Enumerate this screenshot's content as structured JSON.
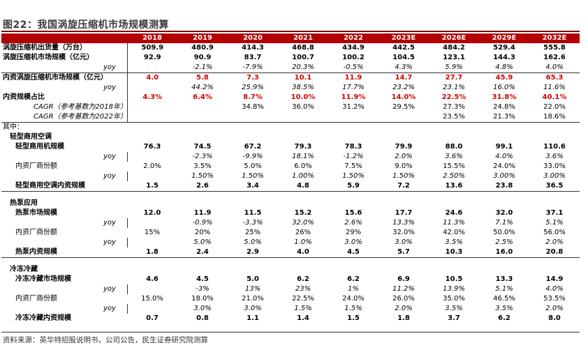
{
  "title": "图22：我国涡旋压缩机市场规模测算",
  "years": [
    "2018",
    "2019",
    "2020",
    "2021",
    "2022",
    "2023E",
    "2026E",
    "2029E",
    "2032E"
  ],
  "rows": {
    "shipments": {
      "label": "涡旋压缩机出货量（万台）",
      "values": [
        "509.9",
        "480.9",
        "414.3",
        "468.8",
        "434.9",
        "442.5",
        "484.2",
        "529.4",
        "555.8"
      ]
    },
    "market": {
      "label": "涡旋压缩机市场规模（亿元）",
      "values": [
        "92.9",
        "90.9",
        "83.7",
        "100.7",
        "100.2",
        "104.5",
        "123.1",
        "144.3",
        "162.6"
      ]
    },
    "market_yoy": {
      "label": "yoy",
      "values": [
        "",
        "-2.1%",
        "-7.9%",
        "20.3%",
        "-0.5%",
        "4.3%",
        "5.9%",
        "4.8%",
        "4.0%"
      ]
    },
    "domestic": {
      "label": "内资涡旋压缩机市场规模（亿元）",
      "values": [
        "4.0",
        "5.8",
        "7.3",
        "10.1",
        "11.9",
        "14.7",
        "27.7",
        "45.9",
        "65.3"
      ]
    },
    "domestic_yoy": {
      "label": "yoy",
      "values": [
        "",
        "44.2%",
        "25.9%",
        "38.5%",
        "17.7%",
        "23.2%",
        "23.1%",
        "16.0%",
        "11.6%"
      ]
    },
    "domestic_share": {
      "label": "内资规模占比",
      "values": [
        "4.3%",
        "6.4%",
        "8.7%",
        "10.0%",
        "11.9%",
        "14.0%",
        "22.5%",
        "31.8%",
        "40.1%"
      ]
    },
    "cagr2018": {
      "label": "CAGR（参考基数为2018年）",
      "values": [
        "",
        "",
        "34.8%",
        "36.0%",
        "31.2%",
        "29.5%",
        "27.3%",
        "24.8%",
        "22.0%"
      ]
    },
    "cagr2022": {
      "label": "CAGR（参考基数为2022年）",
      "values": [
        "",
        "",
        "",
        "",
        "",
        "",
        "23.5%",
        "21.3%",
        "18.6%"
      ]
    },
    "among": {
      "label": "其中："
    },
    "lc_title": {
      "label": "轻型商用空调"
    },
    "lc_market": {
      "label": "轻型商用机规模",
      "values": [
        "76.3",
        "74.5",
        "67.2",
        "79.3",
        "78.3",
        "79.9",
        "88.0",
        "99.1",
        "110.6"
      ]
    },
    "lc_yoy": {
      "label": "yoy",
      "values": [
        "",
        "-2.3%",
        "-9.9%",
        "18.1%",
        "-1.2%",
        "2.0%",
        "3.6%",
        "4.0%",
        "3.6%"
      ]
    },
    "lc_share": {
      "label": "内资厂商份额",
      "values": [
        "2.0%",
        "3.5%",
        "5.0%",
        "6.0%",
        "7.5%",
        "9.0%",
        "15.5%",
        "24.0%",
        "33.0%"
      ]
    },
    "lc_share_yoy": {
      "label": "yoy",
      "values": [
        "",
        "1.50%",
        "1.50%",
        "1.00%",
        "1.50%",
        "1.50%",
        "2.50%",
        "3.00%",
        "3.00%"
      ]
    },
    "lc_domestic": {
      "label": "轻型商用空调内资规模",
      "values": [
        "1.5",
        "2.6",
        "3.4",
        "4.8",
        "5.9",
        "7.2",
        "13.6",
        "23.8",
        "36.5"
      ]
    },
    "hp_title": {
      "label": "热泵应用"
    },
    "hp_market": {
      "label": "热泵市场规模",
      "values": [
        "12.0",
        "11.9",
        "11.5",
        "15.2",
        "15.6",
        "17.7",
        "24.6",
        "32.0",
        "37.1"
      ]
    },
    "hp_yoy": {
      "label": "yoy",
      "values": [
        "",
        "-0.9%",
        "-3.3%",
        "32.0%",
        "2.6%",
        "13.3%",
        "11.3%",
        "7.1%",
        "5.1%"
      ]
    },
    "hp_share": {
      "label": "内资厂商份额",
      "values": [
        "15%",
        "20%",
        "25%",
        "26%",
        "29%",
        "32.0%",
        "42.0%",
        "50.0%",
        "56.0%"
      ]
    },
    "hp_share_yoy": {
      "label": "yoy",
      "values": [
        "",
        "5.0%",
        "5.0%",
        "1.0%",
        "3.0%",
        "3.0%",
        "3.5%",
        "2.5%",
        "2.0%"
      ]
    },
    "hp_domestic": {
      "label": "热泵内资规模",
      "values": [
        "1.8",
        "2.4",
        "2.9",
        "4.0",
        "4.5",
        "5.7",
        "10.3",
        "16.0",
        "20.8"
      ]
    },
    "cf_title": {
      "label": "冷冻冷藏"
    },
    "cf_market": {
      "label": "冷冻冷藏市场规模",
      "values": [
        "4.6",
        "4.5",
        "5.0",
        "6.2",
        "6.2",
        "6.9",
        "10.5",
        "13.3",
        "14.9"
      ]
    },
    "cf_yoy": {
      "label": "yoy",
      "values": [
        "",
        "-3%",
        "13%",
        "23%",
        "1%",
        "11.2%",
        "13.9%",
        "5.1%",
        "4.0%"
      ]
    },
    "cf_share": {
      "label": "内资厂商份额",
      "values": [
        "15.0%",
        "18.0%",
        "21.0%",
        "22.5%",
        "24.0%",
        "26.0%",
        "35.0%",
        "46.5%",
        "53.5%"
      ]
    },
    "cf_share_yoy": {
      "label": "yoy",
      "values": [
        "",
        "3.0%",
        "3.0%",
        "1.5%",
        "1.5%",
        "2.0%",
        "3.5%",
        "3.5%",
        "2.0%"
      ]
    },
    "cf_domestic": {
      "label": "冷冻冷藏内资规模",
      "values": [
        "0.7",
        "0.8",
        "1.1",
        "1.4",
        "1.5",
        "1.8",
        "3.7",
        "6.2",
        "8.0"
      ]
    }
  },
  "source": "资料来源：英华特招股说明书，公司公告，民生证券研究院测算"
}
